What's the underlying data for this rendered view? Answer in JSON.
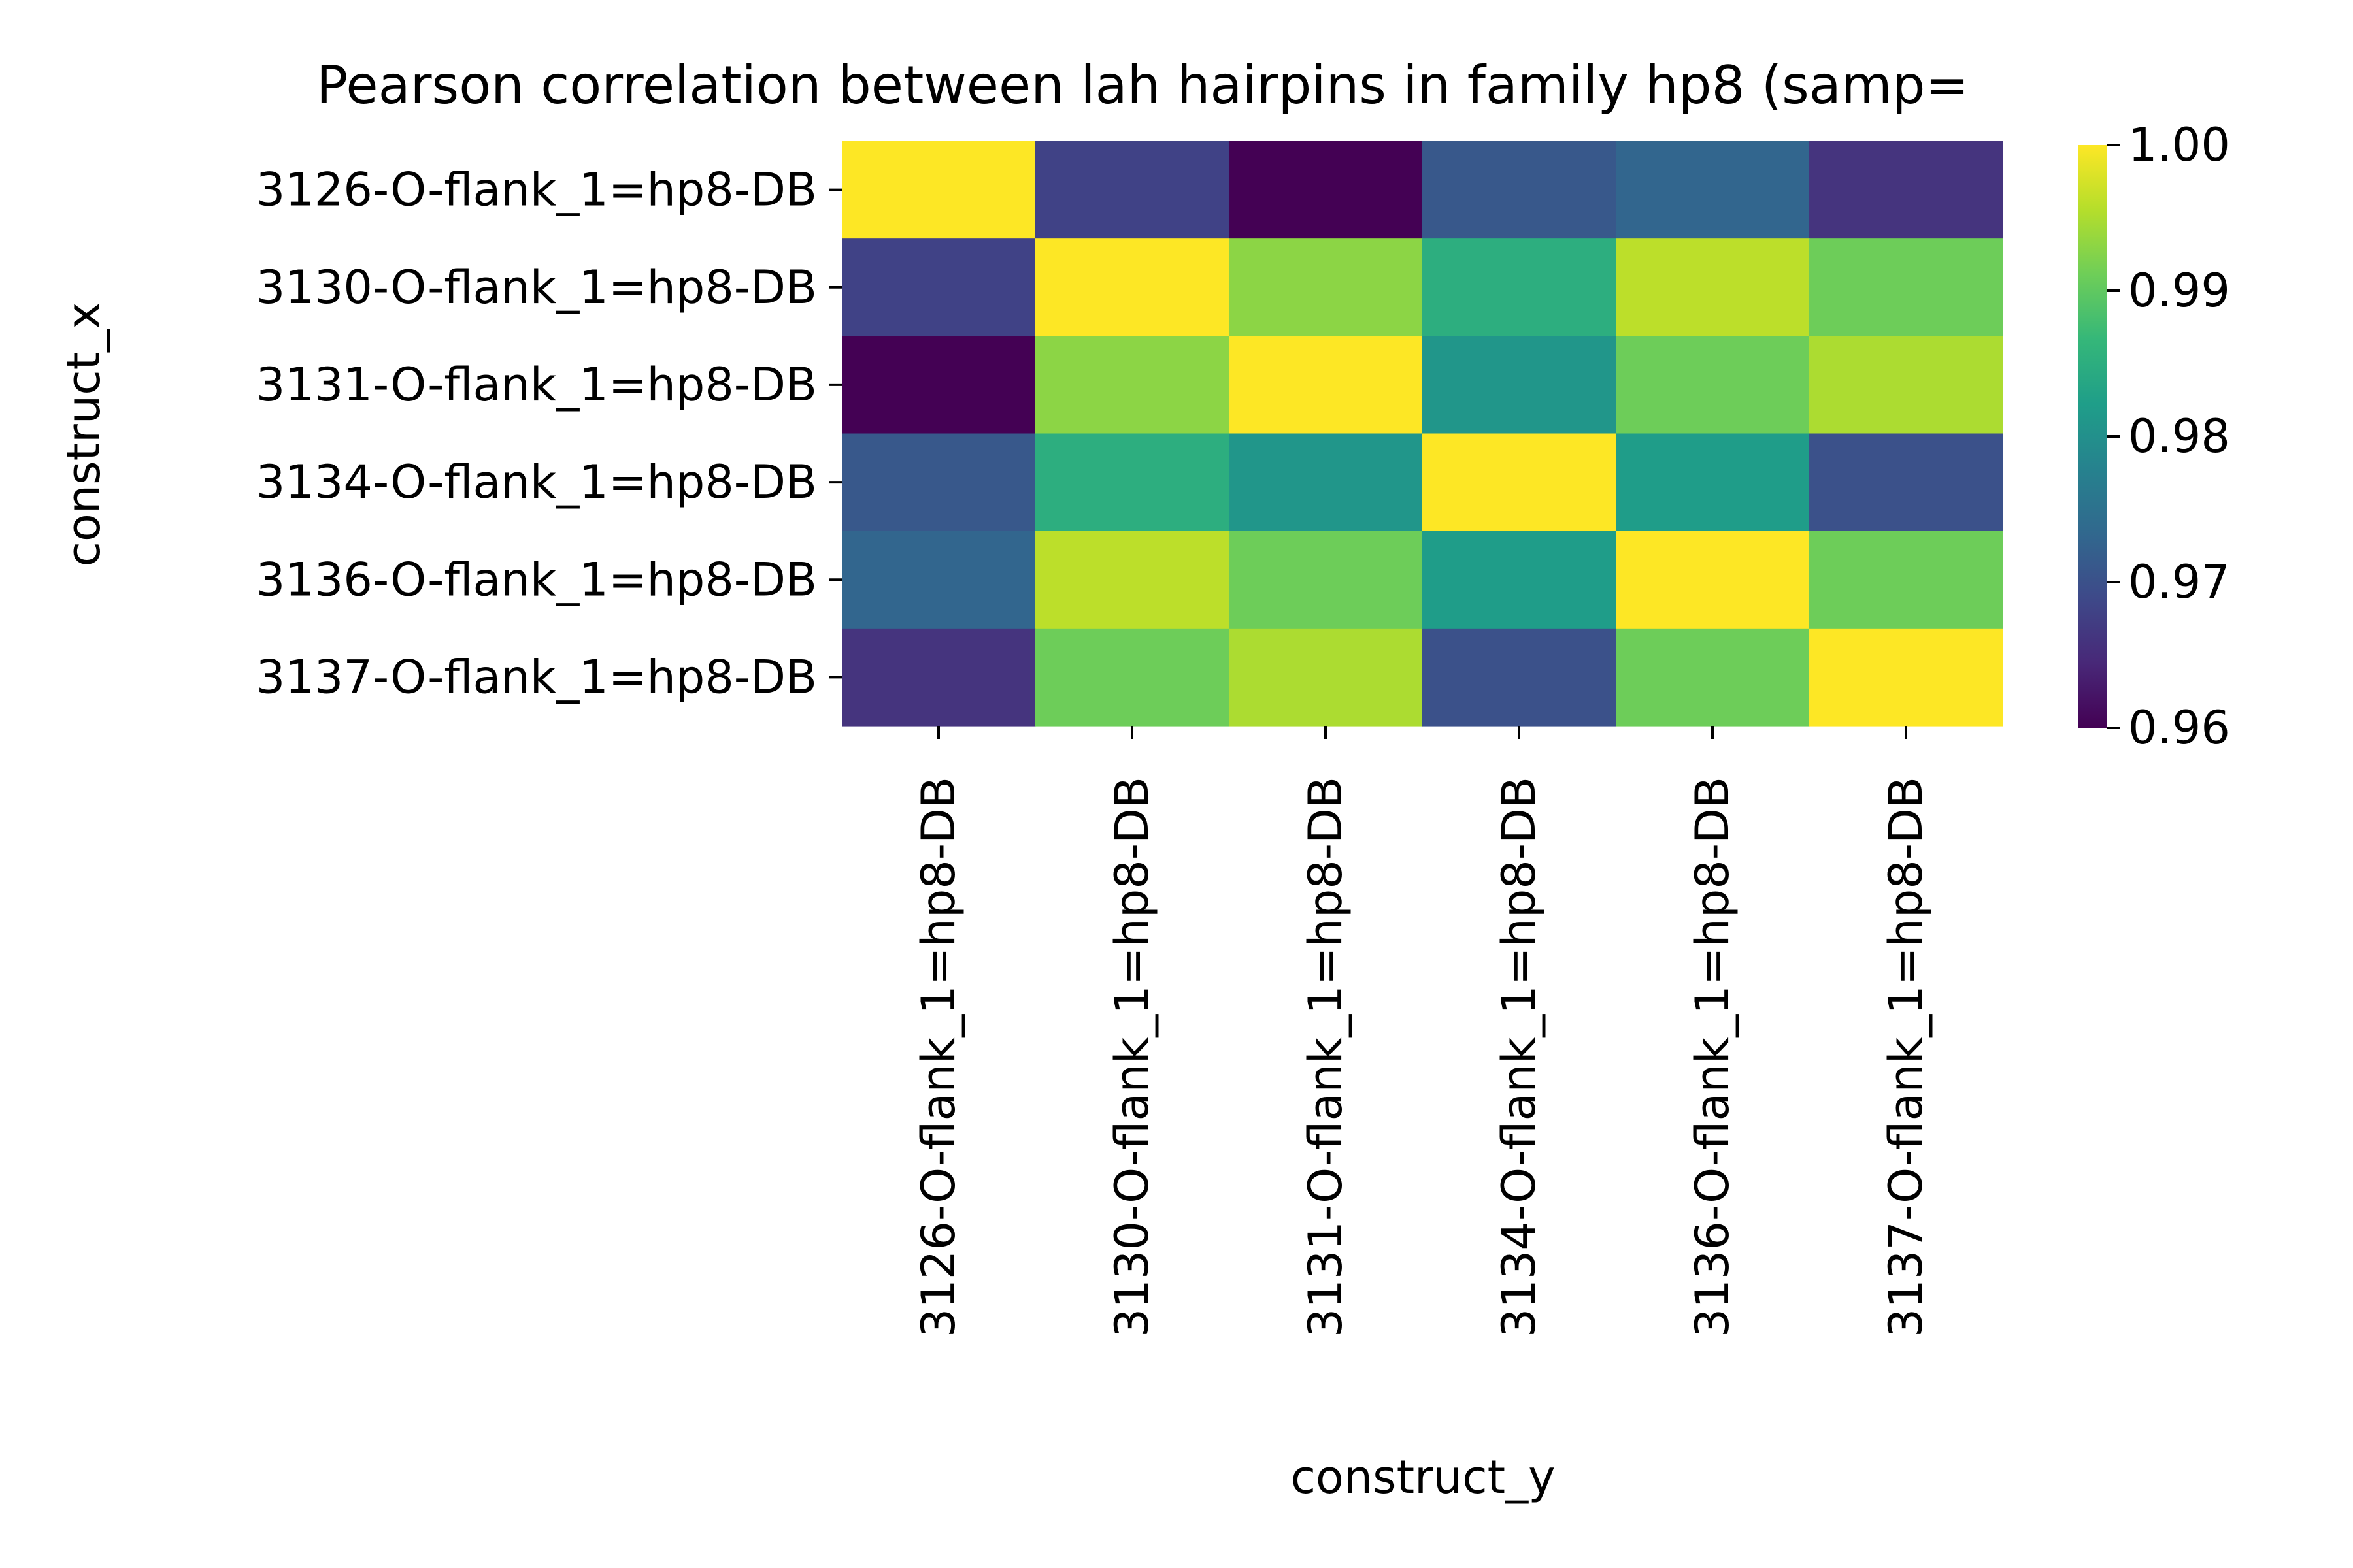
{
  "chart_data": {
    "type": "heatmap",
    "title": "Pearson correlation between lah hairpins in family hp8 (samp=",
    "xlabel": "construct_y",
    "ylabel": "construct_x",
    "x_categories": [
      "3126-O-flank_1=hp8-DB",
      "3130-O-flank_1=hp8-DB",
      "3131-O-flank_1=hp8-DB",
      "3134-O-flank_1=hp8-DB",
      "3136-O-flank_1=hp8-DB",
      "3137-O-flank_1=hp8-DB"
    ],
    "y_categories": [
      "3126-O-flank_1=hp8-DB",
      "3130-O-flank_1=hp8-DB",
      "3131-O-flank_1=hp8-DB",
      "3134-O-flank_1=hp8-DB",
      "3136-O-flank_1=hp8-DB",
      "3137-O-flank_1=hp8-DB"
    ],
    "values": [
      [
        1.0,
        0.968,
        0.96,
        0.971,
        0.973,
        0.966
      ],
      [
        0.968,
        1.0,
        0.993,
        0.985,
        0.996,
        0.991
      ],
      [
        0.96,
        0.993,
        1.0,
        0.981,
        0.991,
        0.995
      ],
      [
        0.971,
        0.985,
        0.981,
        1.0,
        0.982,
        0.97
      ],
      [
        0.973,
        0.996,
        0.991,
        0.982,
        1.0,
        0.991
      ],
      [
        0.966,
        0.991,
        0.995,
        0.97,
        0.991,
        1.0
      ]
    ],
    "colormap": "viridis",
    "colorbar": {
      "range": [
        0.96,
        1.0
      ],
      "ticks": [
        0.96,
        0.97,
        0.98,
        0.99,
        1.0
      ],
      "tick_labels": [
        "0.96",
        "0.97",
        "0.98",
        "0.99",
        "1.00"
      ]
    },
    "colors": {
      "viridis_stops": [
        "#440154",
        "#482878",
        "#3e4989",
        "#31688e",
        "#26828e",
        "#1f9e89",
        "#35b779",
        "#6ece58",
        "#b5de2b",
        "#fde725"
      ]
    }
  }
}
